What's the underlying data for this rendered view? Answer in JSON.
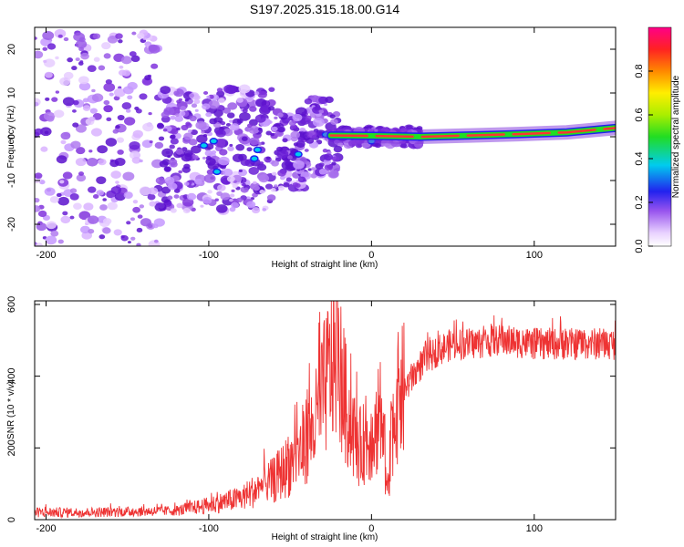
{
  "title": "S197.2025.315.18.00.G14",
  "chart_data": [
    {
      "type": "heatmap",
      "name": "spectrogram",
      "xlabel": "Height of straight line (km)",
      "ylabel": "Frequency (Hz)",
      "xlim": [
        -207,
        150
      ],
      "ylim": [
        -25,
        25
      ],
      "xticks": [
        -200,
        -100,
        0,
        100
      ],
      "yticks": [
        -20,
        -10,
        0,
        10,
        20
      ],
      "colorbar": {
        "label": "Normalized spectral amplitude",
        "range": [
          0,
          1
        ],
        "ticks": [
          0.0,
          0.2,
          0.4,
          0.6,
          0.8
        ]
      },
      "ridge": {
        "x": [
          -25,
          0,
          30,
          60,
          90,
          120,
          150
        ],
        "freq": [
          0.3,
          0.2,
          0.0,
          0.3,
          0.6,
          1.0,
          2.0
        ]
      }
    },
    {
      "type": "line",
      "name": "snr",
      "xlabel": "Height of straight line (km)",
      "ylabel": "SNR (10 * v/v)",
      "xlim": [
        -207,
        150
      ],
      "ylim": [
        0,
        610
      ],
      "xticks": [
        -200,
        -100,
        0,
        100
      ],
      "yticks": [
        0,
        200,
        400,
        600
      ],
      "color": "#ee3333",
      "series": [
        {
          "name": "SNR",
          "x": [
            -207,
            -180,
            -150,
            -120,
            -100,
            -80,
            -60,
            -45,
            -35,
            -28,
            -22,
            -15,
            -8,
            0,
            5,
            10,
            15,
            20,
            30,
            40,
            50,
            60,
            80,
            100,
            120,
            150
          ],
          "y": [
            20,
            20,
            22,
            25,
            40,
            60,
            110,
            180,
            260,
            380,
            480,
            300,
            200,
            230,
            270,
            150,
            330,
            360,
            430,
            470,
            490,
            490,
            500,
            490,
            490,
            490
          ]
        }
      ]
    }
  ]
}
